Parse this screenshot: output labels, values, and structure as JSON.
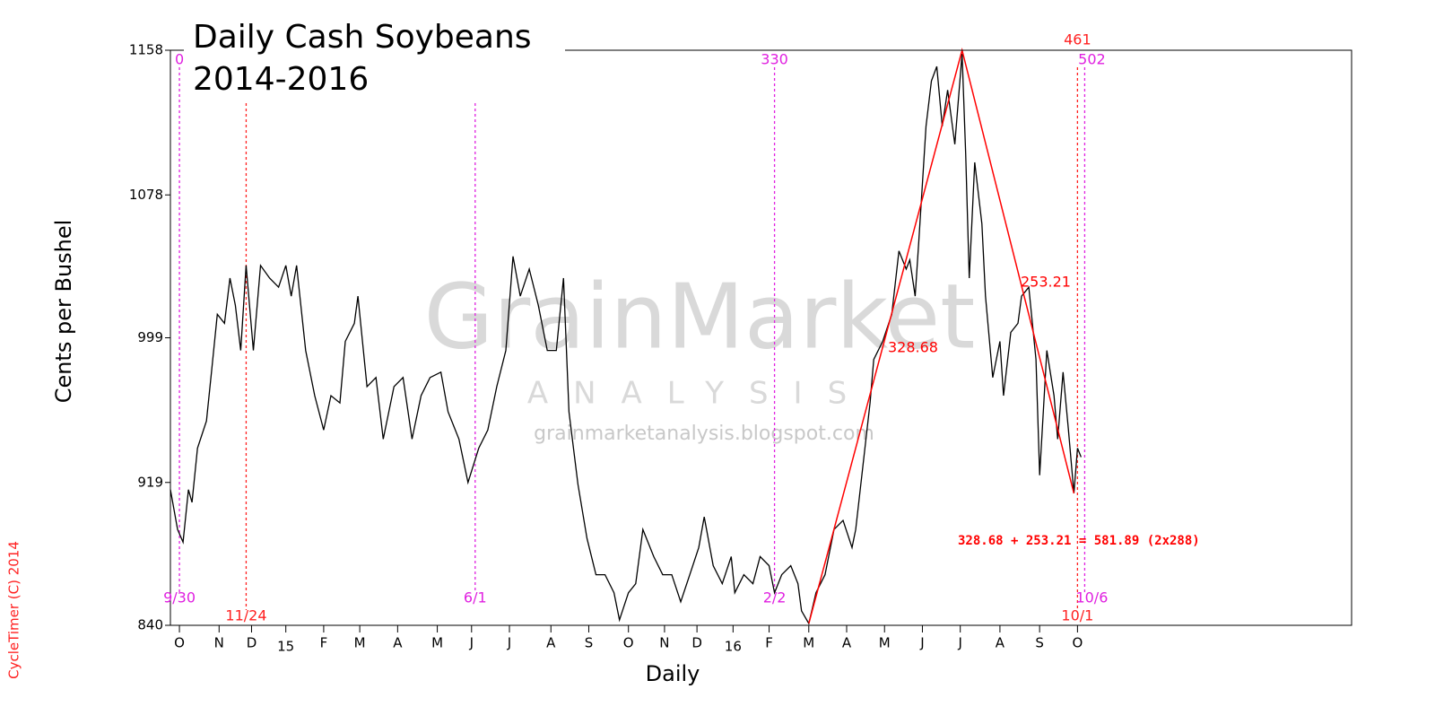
{
  "chart_data": {
    "type": "line",
    "title": "Daily Cash Soybeans",
    "subtitle": "2014-2016",
    "y_label": "Cents per Bushel",
    "x_label": "Daily",
    "watermark": {
      "name": "GrainMarket",
      "sub": "ANALYSIS",
      "url": "grainmarketanalysis.blogspot.com"
    },
    "credit": "CycleTimer (C) 2014",
    "color": "#000000",
    "xlim": [
      -5,
      650
    ],
    "ylim": [
      840,
      1158
    ],
    "yticks": [
      840,
      919,
      999,
      1078,
      1158
    ],
    "xticks": [
      {
        "value": 0,
        "label": "O"
      },
      {
        "value": 22,
        "label": "N"
      },
      {
        "value": 40,
        "label": "D"
      },
      {
        "value": 59,
        "label": "15"
      },
      {
        "value": 80,
        "label": "F"
      },
      {
        "value": 100,
        "label": "M"
      },
      {
        "value": 121,
        "label": "A"
      },
      {
        "value": 143,
        "label": "M"
      },
      {
        "value": 162,
        "label": "J"
      },
      {
        "value": 183,
        "label": "J"
      },
      {
        "value": 206,
        "label": "A"
      },
      {
        "value": 227,
        "label": "S"
      },
      {
        "value": 249,
        "label": "O"
      },
      {
        "value": 269,
        "label": "N"
      },
      {
        "value": 287,
        "label": "D"
      },
      {
        "value": 307,
        "label": "16"
      },
      {
        "value": 327,
        "label": "F"
      },
      {
        "value": 349,
        "label": "M"
      },
      {
        "value": 370,
        "label": "A"
      },
      {
        "value": 391,
        "label": "M"
      },
      {
        "value": 412,
        "label": "J"
      },
      {
        "value": 433,
        "label": "J"
      },
      {
        "value": 455,
        "label": "A"
      },
      {
        "value": 477,
        "label": "S"
      },
      {
        "value": 498,
        "label": "O"
      }
    ],
    "x": [
      -5,
      -1,
      2,
      5,
      7,
      10,
      15,
      18,
      21,
      25,
      28,
      31,
      34,
      37,
      41,
      45,
      50,
      55,
      59,
      62,
      65,
      70,
      75,
      80,
      84,
      89,
      92,
      97,
      99,
      104,
      109,
      113,
      119,
      124,
      129,
      134,
      139,
      145,
      149,
      155,
      160,
      166,
      171,
      176,
      181,
      185,
      189,
      194,
      199,
      204,
      209,
      213,
      216,
      221,
      226,
      231,
      236,
      241,
      244,
      249,
      253,
      257,
      263,
      268,
      273,
      278,
      283,
      288,
      291,
      296,
      301,
      306,
      308,
      313,
      318,
      322,
      327,
      330,
      334,
      339,
      343,
      345,
      349,
      353,
      358,
      363,
      368,
      373,
      375,
      379,
      383,
      385,
      390,
      395,
      399,
      403,
      405,
      408,
      410,
      414,
      417,
      420,
      423,
      426,
      430,
      434,
      436,
      438,
      441,
      445,
      447,
      451,
      455,
      457,
      461,
      465,
      467,
      471,
      475,
      477,
      481,
      485,
      487,
      490,
      493,
      496,
      498,
      500
    ],
    "values": [
      915,
      893,
      886,
      915,
      908,
      938,
      953,
      982,
      1012,
      1007,
      1032,
      1017,
      992,
      1039,
      992,
      1039,
      1032,
      1027,
      1039,
      1022,
      1039,
      992,
      967,
      948,
      967,
      963,
      997,
      1007,
      1022,
      972,
      977,
      943,
      972,
      977,
      943,
      967,
      977,
      980,
      958,
      943,
      919,
      938,
      948,
      972,
      992,
      1044,
      1022,
      1037,
      1017,
      992,
      992,
      1032,
      958,
      918,
      888,
      868,
      868,
      858,
      843,
      858,
      863,
      893,
      878,
      868,
      868,
      853,
      868,
      883,
      900,
      873,
      863,
      878,
      858,
      868,
      863,
      878,
      873,
      858,
      868,
      873,
      863,
      848,
      841,
      858,
      868,
      893,
      898,
      883,
      893,
      928,
      963,
      987,
      997,
      1012,
      1047,
      1037,
      1042,
      1022,
      1052,
      1116,
      1141,
      1149,
      1116,
      1136,
      1106,
      1156,
      1101,
      1032,
      1096,
      1062,
      1022,
      977,
      997,
      967,
      1002,
      1007,
      1022,
      1027,
      987,
      923,
      992,
      967,
      943,
      980,
      948,
      913,
      938,
      933
    ],
    "trend": {
      "color": "#ff0000",
      "x": [
        349,
        434,
        496
      ],
      "values": [
        841,
        1158,
        913
      ],
      "labels": [
        "328.68",
        "253.21"
      ],
      "equation": "328.68 + 253.21 = 581.89 (2x288)"
    },
    "cycles": [
      {
        "x": 0,
        "color": "#e020e0",
        "top": "0",
        "bottom": "9/30"
      },
      {
        "x": 37,
        "color": "#ff2020",
        "bottom": "11/24"
      },
      {
        "x": 164,
        "color": "#e020e0",
        "bottom": "6/1"
      },
      {
        "x": 330,
        "color": "#e020e0",
        "top": "330",
        "bottom": "2/2"
      },
      {
        "x": 498,
        "color": "#ff2020",
        "top": "461",
        "bottom": "10/1"
      },
      {
        "x": 502,
        "color": "#e020e0",
        "top": "502",
        "bottom": "10/6"
      }
    ]
  }
}
